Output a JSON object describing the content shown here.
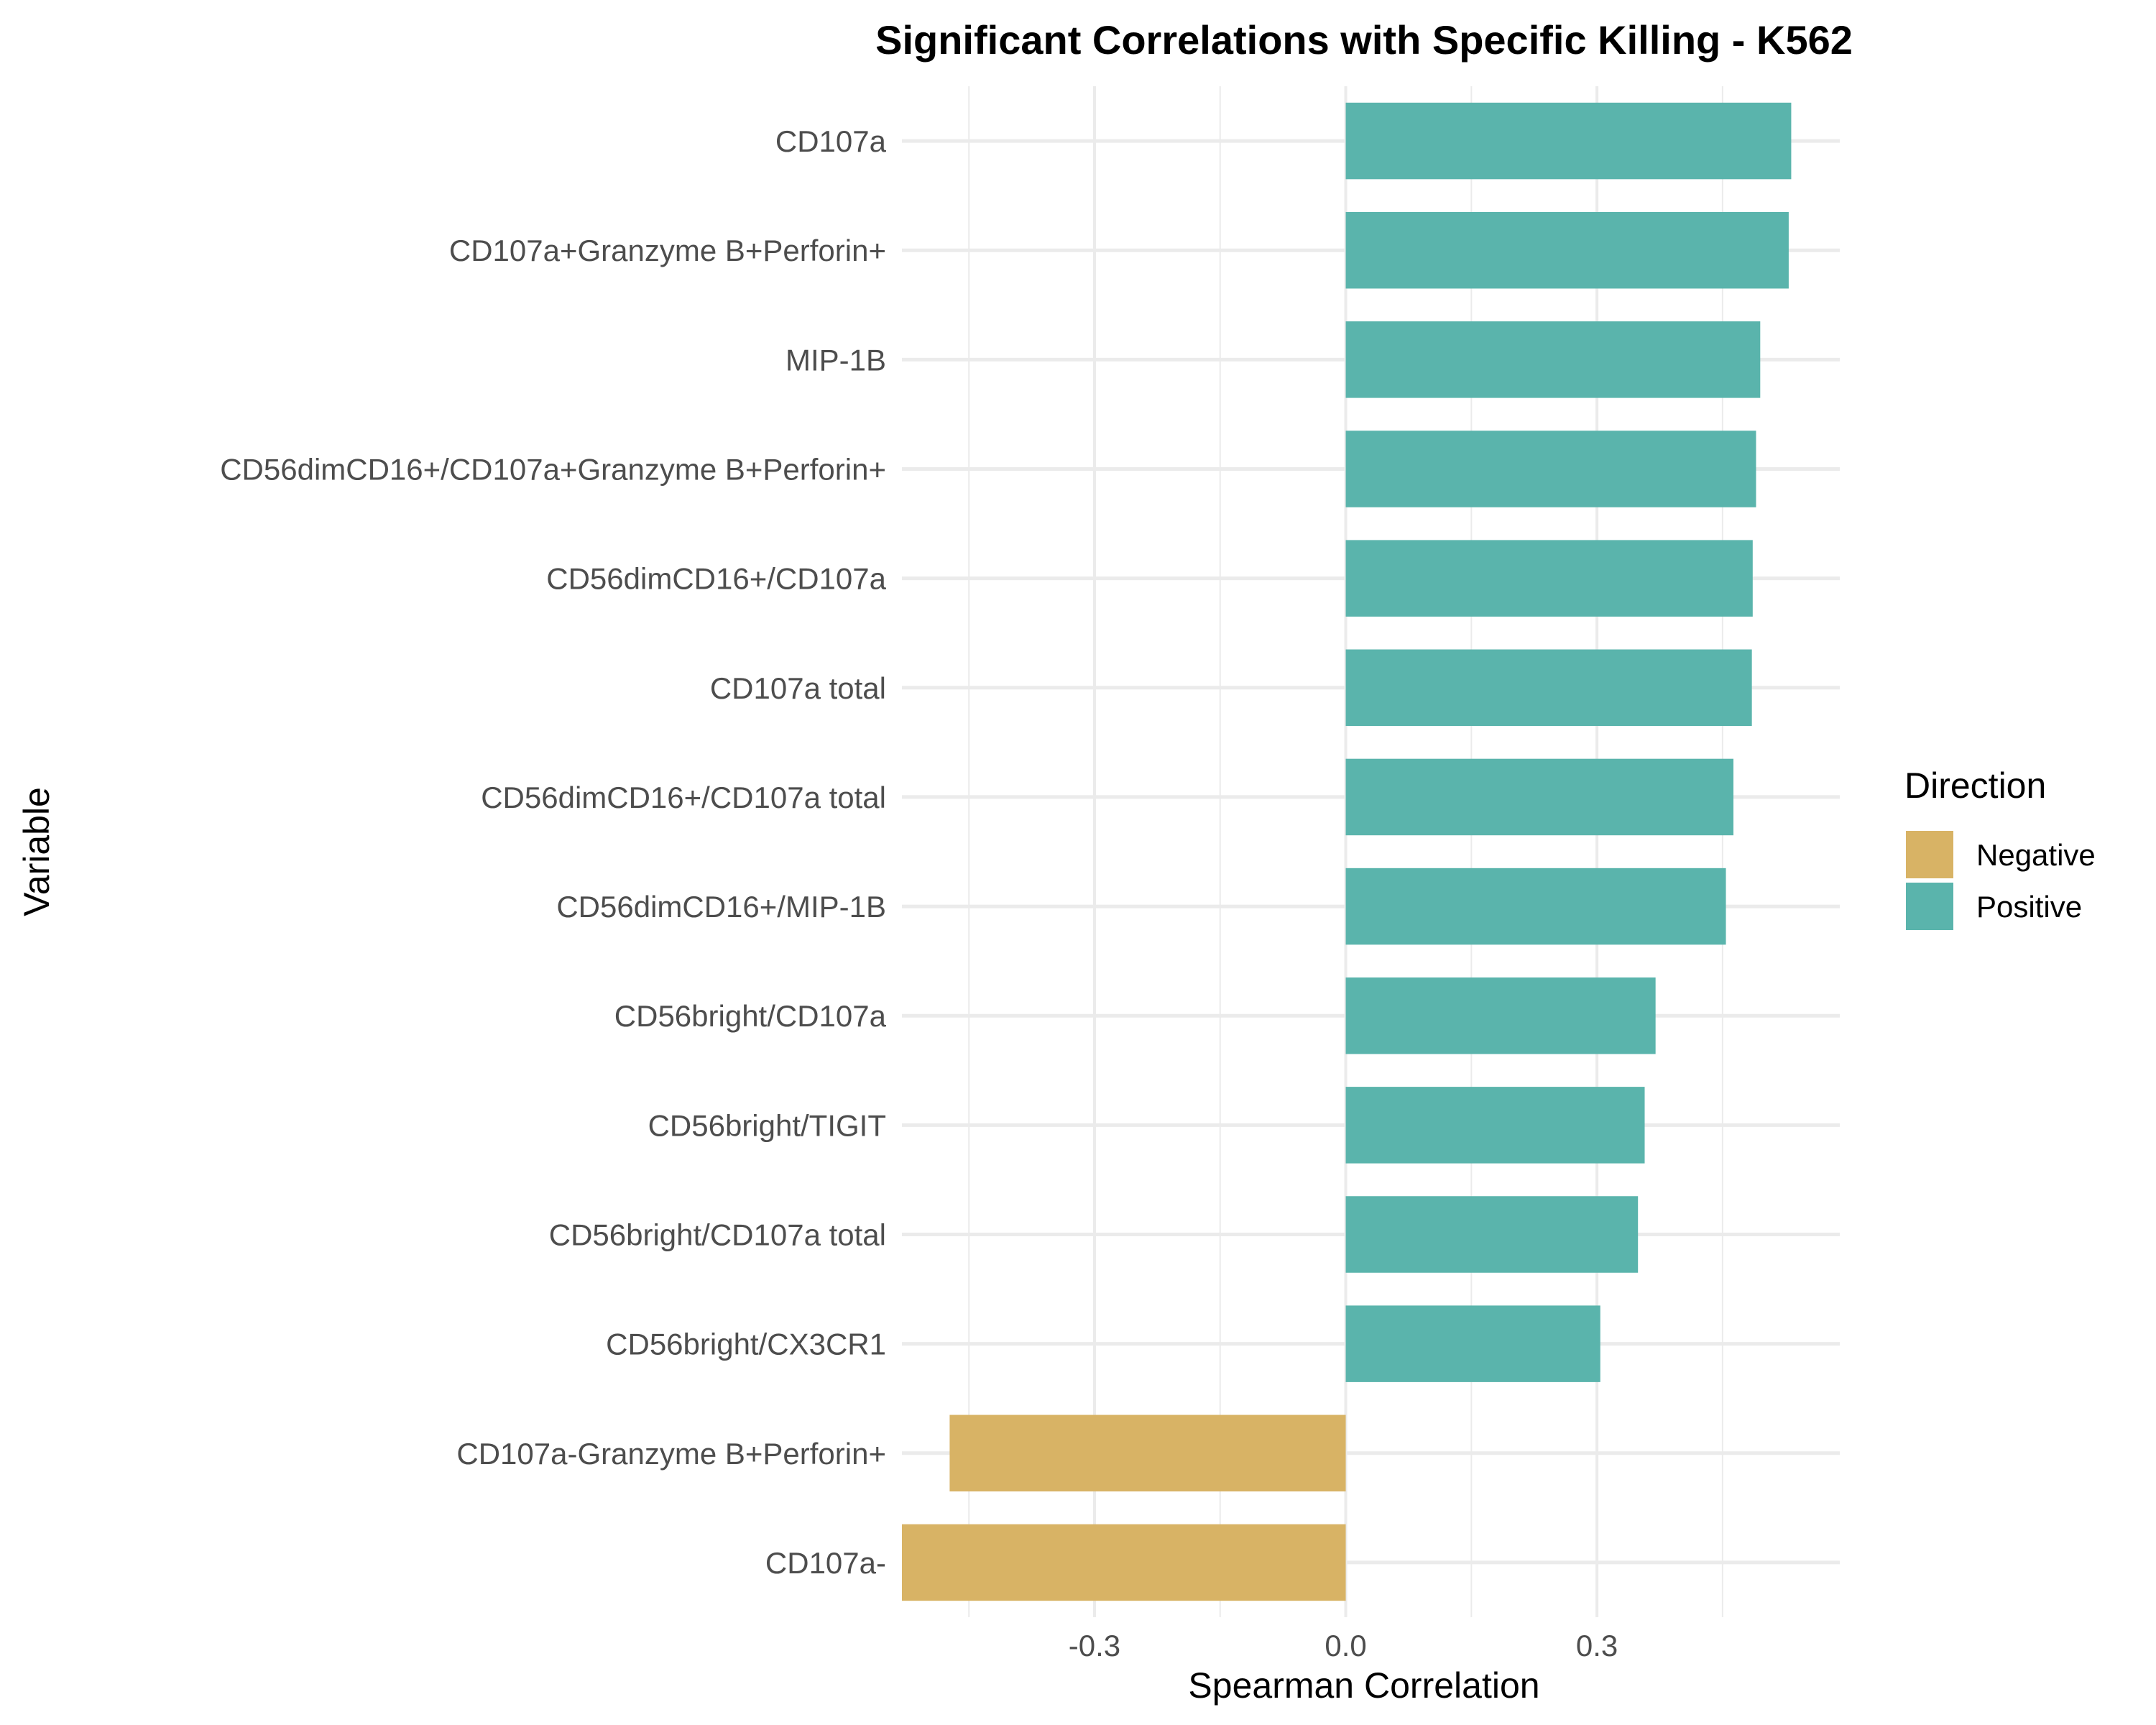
{
  "chart_data": {
    "type": "bar",
    "orientation": "horizontal",
    "title": "Significant Correlations with Specific Killing - K562",
    "xlabel": "Spearman Correlation",
    "ylabel": "Variable",
    "xlim": [
      -0.53,
      0.59
    ],
    "xticks": [
      -0.3,
      0.0,
      0.3
    ],
    "xtick_labels": [
      "-0.3",
      "0.0",
      "0.3"
    ],
    "grid": true,
    "legend": {
      "title": "Direction",
      "placement": "right",
      "entries": [
        {
          "label": "Negative",
          "color": "#D8B365"
        },
        {
          "label": "Positive",
          "color": "#5AB4AC"
        }
      ]
    },
    "categories": [
      "CD107a",
      "CD107a+Granzyme B+Perforin+",
      "MIP-1B",
      "CD56dimCD16+/CD107a+Granzyme B+Perforin+",
      "CD56dimCD16+/CD107a",
      "CD107a total",
      "CD56dimCD16+/CD107a total",
      "CD56dimCD16+/MIP-1B",
      "CD56bright/CD107a",
      "CD56bright/TIGIT",
      "CD56bright/CD107a total",
      "CD56bright/CX3CR1",
      "CD107a-Granzyme B+Perforin+",
      "CD107a-"
    ],
    "values": [
      0.532,
      0.529,
      0.495,
      0.49,
      0.486,
      0.485,
      0.463,
      0.454,
      0.37,
      0.357,
      0.349,
      0.304,
      -0.473,
      -0.53
    ],
    "directions": [
      "Positive",
      "Positive",
      "Positive",
      "Positive",
      "Positive",
      "Positive",
      "Positive",
      "Positive",
      "Positive",
      "Positive",
      "Positive",
      "Positive",
      "Negative",
      "Negative"
    ]
  }
}
